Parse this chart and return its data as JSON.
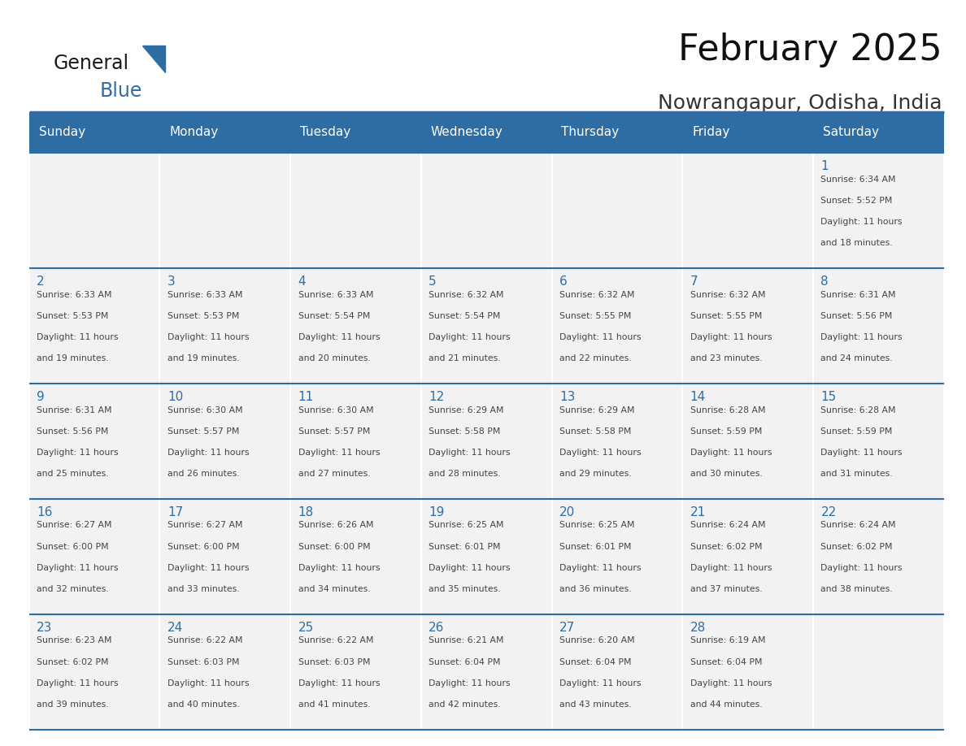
{
  "title": "February 2025",
  "subtitle": "Nowrangapur, Odisha, India",
  "header_bg_color": "#2E6DA4",
  "header_text_color": "#FFFFFF",
  "header_days": [
    "Sunday",
    "Monday",
    "Tuesday",
    "Wednesday",
    "Thursday",
    "Friday",
    "Saturday"
  ],
  "cell_bg_color": "#F2F2F2",
  "cell_border_color": "#2E6DA4",
  "day_number_color": "#2E6DA4",
  "info_text_color": "#444444",
  "background_color": "#FFFFFF",
  "logo_triangle_color": "#2E6DA4",
  "num_rows": 5,
  "num_cols": 7,
  "calendar_data": [
    {
      "day": 1,
      "row": 0,
      "col": 6,
      "sunrise": "6:34 AM",
      "sunset": "5:52 PM",
      "daylight": "11 hours and 18 minutes."
    },
    {
      "day": 2,
      "row": 1,
      "col": 0,
      "sunrise": "6:33 AM",
      "sunset": "5:53 PM",
      "daylight": "11 hours and 19 minutes."
    },
    {
      "day": 3,
      "row": 1,
      "col": 1,
      "sunrise": "6:33 AM",
      "sunset": "5:53 PM",
      "daylight": "11 hours and 19 minutes."
    },
    {
      "day": 4,
      "row": 1,
      "col": 2,
      "sunrise": "6:33 AM",
      "sunset": "5:54 PM",
      "daylight": "11 hours and 20 minutes."
    },
    {
      "day": 5,
      "row": 1,
      "col": 3,
      "sunrise": "6:32 AM",
      "sunset": "5:54 PM",
      "daylight": "11 hours and 21 minutes."
    },
    {
      "day": 6,
      "row": 1,
      "col": 4,
      "sunrise": "6:32 AM",
      "sunset": "5:55 PM",
      "daylight": "11 hours and 22 minutes."
    },
    {
      "day": 7,
      "row": 1,
      "col": 5,
      "sunrise": "6:32 AM",
      "sunset": "5:55 PM",
      "daylight": "11 hours and 23 minutes."
    },
    {
      "day": 8,
      "row": 1,
      "col": 6,
      "sunrise": "6:31 AM",
      "sunset": "5:56 PM",
      "daylight": "11 hours and 24 minutes."
    },
    {
      "day": 9,
      "row": 2,
      "col": 0,
      "sunrise": "6:31 AM",
      "sunset": "5:56 PM",
      "daylight": "11 hours and 25 minutes."
    },
    {
      "day": 10,
      "row": 2,
      "col": 1,
      "sunrise": "6:30 AM",
      "sunset": "5:57 PM",
      "daylight": "11 hours and 26 minutes."
    },
    {
      "day": 11,
      "row": 2,
      "col": 2,
      "sunrise": "6:30 AM",
      "sunset": "5:57 PM",
      "daylight": "11 hours and 27 minutes."
    },
    {
      "day": 12,
      "row": 2,
      "col": 3,
      "sunrise": "6:29 AM",
      "sunset": "5:58 PM",
      "daylight": "11 hours and 28 minutes."
    },
    {
      "day": 13,
      "row": 2,
      "col": 4,
      "sunrise": "6:29 AM",
      "sunset": "5:58 PM",
      "daylight": "11 hours and 29 minutes."
    },
    {
      "day": 14,
      "row": 2,
      "col": 5,
      "sunrise": "6:28 AM",
      "sunset": "5:59 PM",
      "daylight": "11 hours and 30 minutes."
    },
    {
      "day": 15,
      "row": 2,
      "col": 6,
      "sunrise": "6:28 AM",
      "sunset": "5:59 PM",
      "daylight": "11 hours and 31 minutes."
    },
    {
      "day": 16,
      "row": 3,
      "col": 0,
      "sunrise": "6:27 AM",
      "sunset": "6:00 PM",
      "daylight": "11 hours and 32 minutes."
    },
    {
      "day": 17,
      "row": 3,
      "col": 1,
      "sunrise": "6:27 AM",
      "sunset": "6:00 PM",
      "daylight": "11 hours and 33 minutes."
    },
    {
      "day": 18,
      "row": 3,
      "col": 2,
      "sunrise": "6:26 AM",
      "sunset": "6:00 PM",
      "daylight": "11 hours and 34 minutes."
    },
    {
      "day": 19,
      "row": 3,
      "col": 3,
      "sunrise": "6:25 AM",
      "sunset": "6:01 PM",
      "daylight": "11 hours and 35 minutes."
    },
    {
      "day": 20,
      "row": 3,
      "col": 4,
      "sunrise": "6:25 AM",
      "sunset": "6:01 PM",
      "daylight": "11 hours and 36 minutes."
    },
    {
      "day": 21,
      "row": 3,
      "col": 5,
      "sunrise": "6:24 AM",
      "sunset": "6:02 PM",
      "daylight": "11 hours and 37 minutes."
    },
    {
      "day": 22,
      "row": 3,
      "col": 6,
      "sunrise": "6:24 AM",
      "sunset": "6:02 PM",
      "daylight": "11 hours and 38 minutes."
    },
    {
      "day": 23,
      "row": 4,
      "col": 0,
      "sunrise": "6:23 AM",
      "sunset": "6:02 PM",
      "daylight": "11 hours and 39 minutes."
    },
    {
      "day": 24,
      "row": 4,
      "col": 1,
      "sunrise": "6:22 AM",
      "sunset": "6:03 PM",
      "daylight": "11 hours and 40 minutes."
    },
    {
      "day": 25,
      "row": 4,
      "col": 2,
      "sunrise": "6:22 AM",
      "sunset": "6:03 PM",
      "daylight": "11 hours and 41 minutes."
    },
    {
      "day": 26,
      "row": 4,
      "col": 3,
      "sunrise": "6:21 AM",
      "sunset": "6:04 PM",
      "daylight": "11 hours and 42 minutes."
    },
    {
      "day": 27,
      "row": 4,
      "col": 4,
      "sunrise": "6:20 AM",
      "sunset": "6:04 PM",
      "daylight": "11 hours and 43 minutes."
    },
    {
      "day": 28,
      "row": 4,
      "col": 5,
      "sunrise": "6:19 AM",
      "sunset": "6:04 PM",
      "daylight": "11 hours and 44 minutes."
    }
  ]
}
